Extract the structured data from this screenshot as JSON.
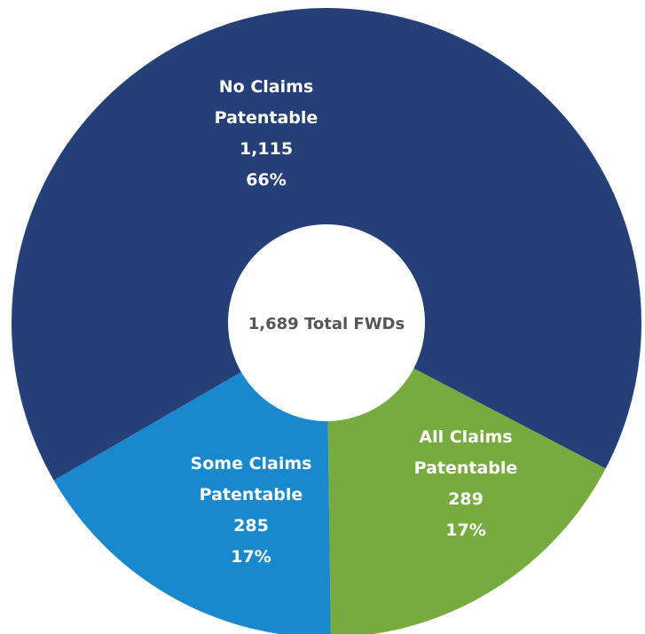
{
  "chart_data": {
    "type": "pie",
    "center_label": "1,689 Total FWDs",
    "slices": [
      {
        "name": "No Claims Patentable",
        "label_lines": [
          "No Claims",
          "Patentable"
        ],
        "value": 1115,
        "value_text": "1,115",
        "percent_text": "66%",
        "color": "#253f78"
      },
      {
        "name": "All Claims Patentable",
        "label_lines": [
          "All Claims",
          "Patentable"
        ],
        "value": 289,
        "value_text": "289",
        "percent_text": "17%",
        "color": "#77ab40"
      },
      {
        "name": "Some Claims Patentable",
        "label_lines": [
          "Some Claims",
          "Patentable"
        ],
        "value": 285,
        "value_text": "285",
        "percent_text": "17%",
        "color": "#1a88cd"
      }
    ]
  }
}
